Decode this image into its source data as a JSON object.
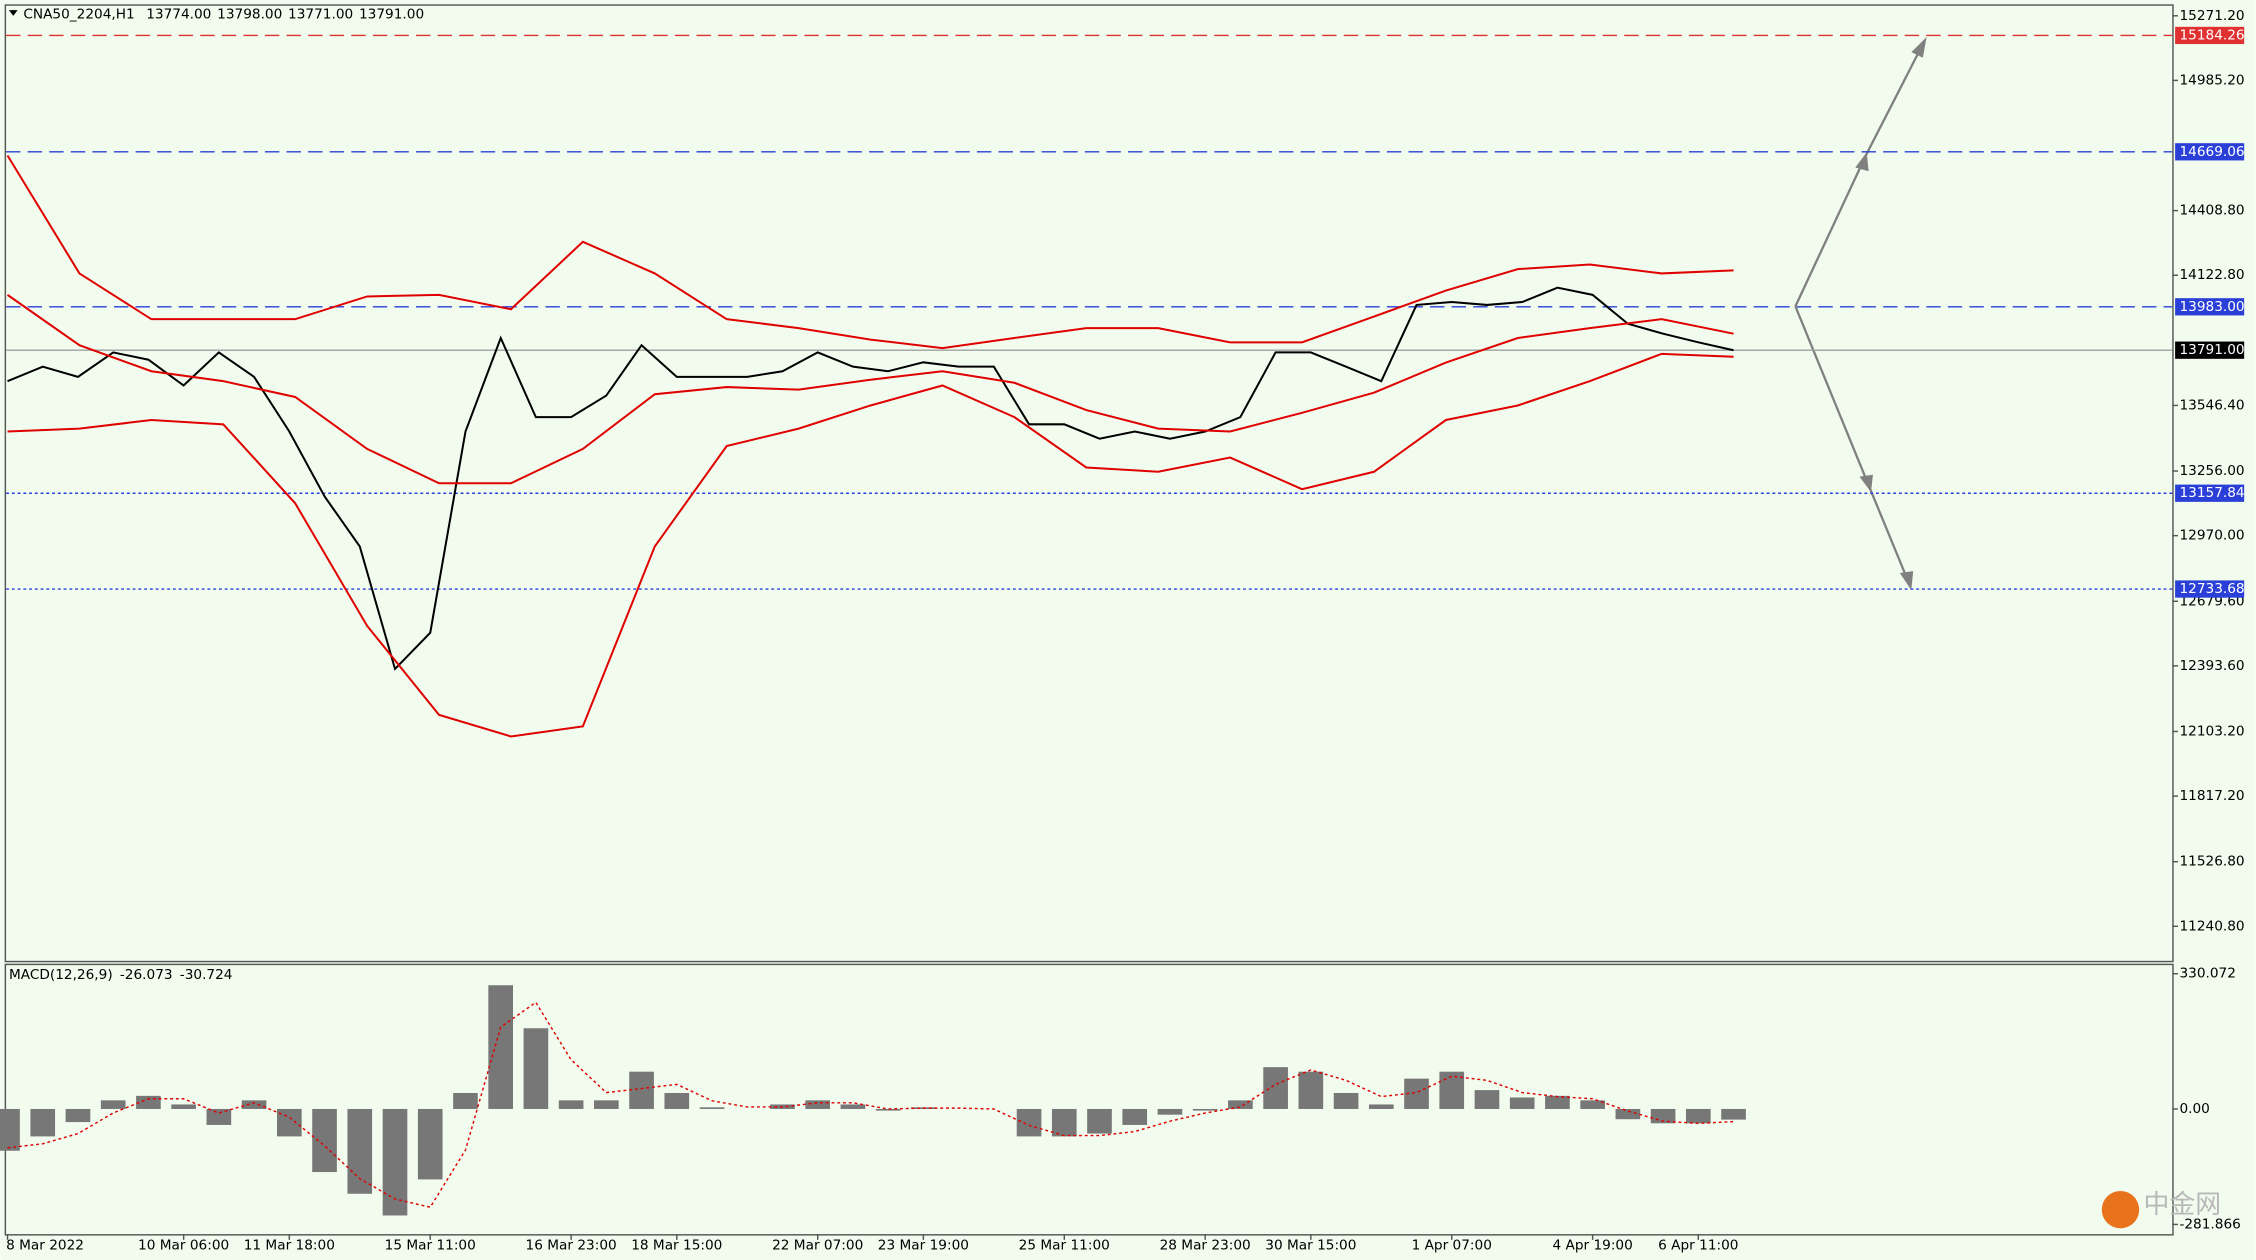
{
  "chart_data": [
    {
      "type": "line",
      "title": "CNA50_2204,H1",
      "ohlc": [
        {
          "value": 13774,
          "label": "13774.00"
        },
        {
          "value": 13798,
          "label": "13798.00"
        },
        {
          "value": 13771,
          "label": "13771.00"
        },
        {
          "value": 13791,
          "label": "13791.00"
        }
      ],
      "ylim": [
        11088,
        15322
      ],
      "yticks": [
        {
          "value": 15271.2,
          "label": "15271.20"
        },
        {
          "value": 14985.2,
          "label": "14985.20"
        },
        {
          "value": 14408.8,
          "label": "14408.80"
        },
        {
          "value": 14122.8,
          "label": "14122.80"
        },
        {
          "value": 13546.4,
          "label": "13546.40"
        },
        {
          "value": 13256,
          "label": "13256.00"
        },
        {
          "value": 12970,
          "label": "12970.00"
        },
        {
          "value": 12679.6,
          "label": "12679.60"
        },
        {
          "value": 12393.6,
          "label": "12393.60"
        },
        {
          "value": 12103.2,
          "label": "12103.20"
        },
        {
          "value": 11817.2,
          "label": "11817.20"
        },
        {
          "value": 11526.8,
          "label": "11526.80"
        },
        {
          "value": 11240.8,
          "label": "11240.80"
        }
      ],
      "levels": [
        {
          "value": 15184.26,
          "label": "15184.26",
          "color": "#e03030",
          "style": "dashed"
        },
        {
          "value": 14669.06,
          "label": "14669.06",
          "color": "#2a3fd8",
          "style": "dashed"
        },
        {
          "value": 13983,
          "label": "13983.00",
          "color": "#2a3fd8",
          "style": "dashed"
        },
        {
          "value": 13791,
          "label": "13791.00",
          "color": "#000000",
          "style": "solid"
        },
        {
          "value": 13157.84,
          "label": "13157.84",
          "color": "#2a3fd8",
          "style": "dotted"
        },
        {
          "value": 12733.68,
          "label": "12733.68",
          "color": "#2a3fd8",
          "style": "dotted"
        }
      ],
      "series": [
        {
          "name": "Close",
          "color": "#000000",
          "values": [
            13654,
            13718,
            13673,
            13781,
            13749,
            13635,
            13781,
            13673,
            13431,
            13144,
            12922,
            12380,
            12540,
            13431,
            13845,
            13495,
            13495,
            13590,
            13813,
            13673,
            13673,
            13673,
            13698,
            13781,
            13718,
            13698,
            13737,
            13718,
            13718,
            13463,
            13463,
            13399,
            13431,
            13399,
            13431,
            13495,
            13781,
            13781,
            13718,
            13654,
            13991,
            14004,
            13991,
            14004,
            14068,
            14036,
            13908,
            13864,
            13826,
            13791
          ]
        },
        {
          "name": "Upper band",
          "color": "#e00000",
          "values": [
            14653,
            14131,
            13928,
            13928,
            13928,
            14029,
            14036,
            13972,
            14271,
            14131,
            13928,
            13889,
            13838,
            13800,
            13845,
            13889,
            13889,
            13826,
            13826,
            13940,
            14055,
            14150,
            14170,
            14131,
            14144
          ]
        },
        {
          "name": "Middle band",
          "color": "#e00000",
          "values": [
            14036,
            13813,
            13698,
            13654,
            13584,
            13354,
            13202,
            13202,
            13354,
            13596,
            13628,
            13616,
            13660,
            13698,
            13647,
            13526,
            13444,
            13431,
            13514,
            13603,
            13736,
            13845,
            13889,
            13928,
            13864
          ]
        },
        {
          "name": "Lower band",
          "color": "#e00000",
          "values": [
            13431,
            13444,
            13482,
            13463,
            13113,
            12571,
            12177,
            12081,
            12126,
            12922,
            13367,
            13444,
            13546,
            13635,
            13495,
            13272,
            13253,
            13316,
            13176,
            13253,
            13482,
            13546,
            13654,
            13775,
            13762
          ]
        }
      ]
    },
    {
      "type": "bar",
      "title": "MACD(12,26,9)",
      "indicator_values": [
        {
          "value": -26.073,
          "label": "-26.073"
        },
        {
          "value": -30.724,
          "label": "-30.724"
        }
      ],
      "ylim": [
        -305.5,
        354.6
      ],
      "yticks": [
        {
          "value": 330.072,
          "label": "330.072"
        },
        {
          "value": 0,
          "label": "0.00"
        },
        {
          "value": -281.866,
          "label": "-281.866"
        }
      ],
      "categories": [
        "8 Mar 2022",
        null,
        null,
        null,
        null,
        "10 Mar 06:00",
        null,
        null,
        "11 Mar 18:00",
        null,
        null,
        null,
        "15 Mar 11:00",
        null,
        null,
        null,
        "16 Mar 23:00",
        null,
        null,
        "18 Mar 15:00",
        null,
        null,
        null,
        "22 Mar 07:00",
        null,
        null,
        "23 Mar 19:00",
        null,
        null,
        null,
        "25 Mar 11:00",
        null,
        null,
        null,
        "28 Mar 23:00",
        null,
        null,
        "30 Mar 15:00",
        null,
        null,
        null,
        "1 Apr 07:00",
        null,
        null,
        null,
        "4 Apr 19:00",
        null,
        null,
        "6 Apr 11:00",
        null
      ],
      "series": [
        {
          "name": "MACD",
          "color": "#777777",
          "values": [
            -102,
            -67,
            -32,
            21,
            32,
            11,
            -39,
            21,
            -67,
            -154,
            -207,
            -260,
            -172,
            39,
            302,
            197,
            21,
            21,
            91,
            39,
            4,
            0,
            11,
            21,
            11,
            -4,
            4,
            0,
            0,
            -67,
            -67,
            -60,
            -39,
            -14,
            -4,
            21,
            102,
            91,
            39,
            11,
            74,
            91,
            46,
            28,
            32,
            21,
            -25,
            -35,
            -35,
            -26
          ]
        },
        {
          "name": "Signal",
          "color": "#e00000",
          "type": "line",
          "values": [
            -95,
            -85,
            -60,
            -10,
            25,
            25,
            -10,
            15,
            -20,
            -90,
            -170,
            -220,
            -240,
            -100,
            200,
            260,
            120,
            40,
            50,
            60,
            20,
            5,
            5,
            15,
            15,
            0,
            2,
            2,
            0,
            -40,
            -65,
            -65,
            -55,
            -30,
            -10,
            5,
            60,
            95,
            70,
            30,
            40,
            80,
            70,
            40,
            30,
            25,
            -5,
            -30,
            -35,
            -31
          ]
        }
      ]
    }
  ],
  "watermark": "中金网"
}
